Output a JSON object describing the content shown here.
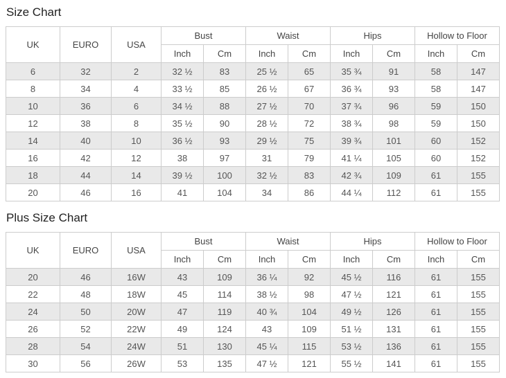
{
  "colors": {
    "border": "#cccccc",
    "stripe": "#e9e9e9",
    "header_text": "#444444",
    "cell_text": "#555555",
    "title_text": "#222222",
    "background": "#ffffff"
  },
  "tables": [
    {
      "title": "Size Chart",
      "size_headers": [
        "UK",
        "EURO",
        "USA"
      ],
      "measure_groups": [
        "Bust",
        "Waist",
        "Hips",
        "Hollow to Floor"
      ],
      "unit_headers": [
        "Inch",
        "Cm"
      ],
      "rows": [
        [
          "6",
          "32",
          "2",
          "32 ½",
          "83",
          "25 ½",
          "65",
          "35 ¾",
          "91",
          "58",
          "147"
        ],
        [
          "8",
          "34",
          "4",
          "33 ½",
          "85",
          "26 ½",
          "67",
          "36 ¾",
          "93",
          "58",
          "147"
        ],
        [
          "10",
          "36",
          "6",
          "34 ½",
          "88",
          "27 ½",
          "70",
          "37 ¾",
          "96",
          "59",
          "150"
        ],
        [
          "12",
          "38",
          "8",
          "35 ½",
          "90",
          "28 ½",
          "72",
          "38 ¾",
          "98",
          "59",
          "150"
        ],
        [
          "14",
          "40",
          "10",
          "36 ½",
          "93",
          "29 ½",
          "75",
          "39 ¾",
          "101",
          "60",
          "152"
        ],
        [
          "16",
          "42",
          "12",
          "38",
          "97",
          "31",
          "79",
          "41 ¼",
          "105",
          "60",
          "152"
        ],
        [
          "18",
          "44",
          "14",
          "39 ½",
          "100",
          "32 ½",
          "83",
          "42 ¾",
          "109",
          "61",
          "155"
        ],
        [
          "20",
          "46",
          "16",
          "41",
          "104",
          "34",
          "86",
          "44 ¼",
          "112",
          "61",
          "155"
        ]
      ]
    },
    {
      "title": "Plus Size Chart",
      "size_headers": [
        "UK",
        "EURO",
        "USA"
      ],
      "measure_groups": [
        "Bust",
        "Waist",
        "Hips",
        "Hollow to Floor"
      ],
      "unit_headers": [
        "Inch",
        "Cm"
      ],
      "rows": [
        [
          "20",
          "46",
          "16W",
          "43",
          "109",
          "36 ¼",
          "92",
          "45 ½",
          "116",
          "61",
          "155"
        ],
        [
          "22",
          "48",
          "18W",
          "45",
          "114",
          "38 ½",
          "98",
          "47 ½",
          "121",
          "61",
          "155"
        ],
        [
          "24",
          "50",
          "20W",
          "47",
          "119",
          "40 ¾",
          "104",
          "49 ½",
          "126",
          "61",
          "155"
        ],
        [
          "26",
          "52",
          "22W",
          "49",
          "124",
          "43",
          "109",
          "51 ½",
          "131",
          "61",
          "155"
        ],
        [
          "28",
          "54",
          "24W",
          "51",
          "130",
          "45 ¼",
          "115",
          "53 ½",
          "136",
          "61",
          "155"
        ],
        [
          "30",
          "56",
          "26W",
          "53",
          "135",
          "47 ½",
          "121",
          "55 ½",
          "141",
          "61",
          "155"
        ]
      ]
    }
  ]
}
